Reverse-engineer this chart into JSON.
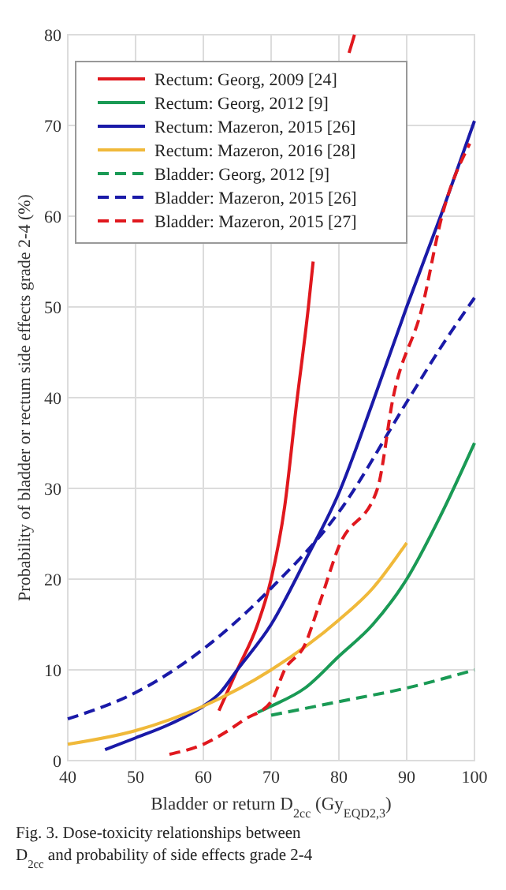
{
  "chart_data": {
    "type": "line",
    "xlabel": "Bladder or return D$_{2cc}$ (Gy$_{EQD2,3}$)",
    "ylabel": "Probability of bladder or rectum side effects grade 2-4 (%)",
    "annotations": [
      "Fig. 3. Dose-toxicity relationships between D$_{2cc}$ and probability of side effects grade 2-4"
    ],
    "xlim": [
      40,
      100
    ],
    "xticks": [
      40,
      50,
      60,
      70,
      80,
      90,
      100
    ],
    "ylim": [
      0,
      80
    ],
    "yticks": [
      0,
      10,
      20,
      30,
      40,
      50,
      60,
      70,
      80
    ],
    "grid": true,
    "legend": "top left",
    "marker": "none",
    "series": [
      {
        "name": "Rectum: Georg, 2009 [24]",
        "color": "#e0181e",
        "line_style": "solid",
        "x": [
          62.3,
          65,
          68,
          70,
          72,
          73.7,
          75.5,
          76.2,
          79,
          81.5,
          82.3
        ],
        "values": [
          5.5,
          10,
          15,
          20,
          28,
          39,
          50,
          55,
          null,
          78,
          80
        ]
      },
      {
        "name": "Rectum: Georg, 2012 [9]",
        "color": "#1a9a55",
        "line_style": "solid",
        "x": [
          68,
          70,
          75,
          80,
          85,
          90,
          95,
          100
        ],
        "values": [
          5.3,
          6,
          8,
          11.5,
          15,
          20,
          27,
          35
        ]
      },
      {
        "name": "Rectum: Mazeron, 2015 [26]",
        "color": "#1a1aa8",
        "line_style": "solid",
        "x": [
          45.5,
          50,
          55,
          60,
          62.5,
          65,
          70,
          75,
          80,
          85,
          90,
          95,
          100
        ],
        "values": [
          1.2,
          2.5,
          4,
          6,
          7.5,
          10,
          15,
          22,
          29.5,
          39.5,
          50,
          60,
          70.5
        ]
      },
      {
        "name": "Rectum: Mazeron, 2016 [28]",
        "color": "#f0b93a",
        "line_style": "solid",
        "x": [
          40,
          50,
          60,
          70,
          80,
          85,
          90
        ],
        "values": [
          1.8,
          3.3,
          6,
          10,
          15.5,
          19,
          24
        ]
      },
      {
        "name": "Bladder: Georg, 2012 [9]",
        "color": "#1a9a55",
        "line_style": "dashed",
        "x": [
          70,
          80,
          90,
          100
        ],
        "values": [
          5,
          6.5,
          8,
          10
        ]
      },
      {
        "name": "Bladder: Mazeron, 2015 [26]",
        "color": "#1a1aa8",
        "line_style": "dashed",
        "x": [
          40,
          50,
          60,
          70,
          80,
          90,
          95,
          100
        ],
        "values": [
          4.6,
          7.5,
          12.3,
          19,
          27.4,
          39.5,
          45.5,
          51
        ]
      },
      {
        "name": "Bladder: Mazeron, 2015 [27]",
        "color": "#e0181e",
        "line_style": "dashed",
        "x": [
          55,
          60,
          63,
          66,
          70,
          72,
          75,
          77,
          80,
          85.7,
          88,
          92.3,
          95.2,
          99.3
        ],
        "values": [
          0.7,
          1.8,
          3,
          4.5,
          6.5,
          10,
          12.8,
          17,
          23.6,
          30,
          40,
          50,
          60,
          68
        ]
      }
    ]
  }
}
